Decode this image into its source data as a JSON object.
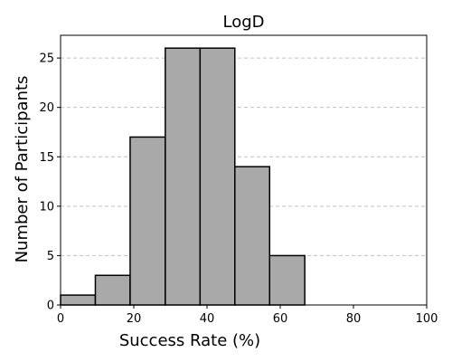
{
  "chart_data": {
    "type": "bar",
    "title": "LogD",
    "xlabel": "Success Rate (%)",
    "ylabel": "Number of Participants",
    "xlim": [
      0,
      100
    ],
    "ylim": [
      0,
      27.3
    ],
    "x_ticks": [
      0,
      20,
      40,
      60,
      80,
      100
    ],
    "y_ticks": [
      0,
      5,
      10,
      15,
      20,
      25
    ],
    "bins": [
      {
        "start": 0.0,
        "end": 9.5,
        "count": 1
      },
      {
        "start": 9.5,
        "end": 19.0,
        "count": 3
      },
      {
        "start": 19.0,
        "end": 28.6,
        "count": 17
      },
      {
        "start": 28.6,
        "end": 38.1,
        "count": 26
      },
      {
        "start": 38.1,
        "end": 47.6,
        "count": 26
      },
      {
        "start": 47.6,
        "end": 57.1,
        "count": 14
      },
      {
        "start": 57.1,
        "end": 66.7,
        "count": 5
      }
    ],
    "grid": "y-dashed",
    "bar_color": "#a9a9a9",
    "edge_color": "#000000",
    "grid_color": "#c0c0c0"
  }
}
